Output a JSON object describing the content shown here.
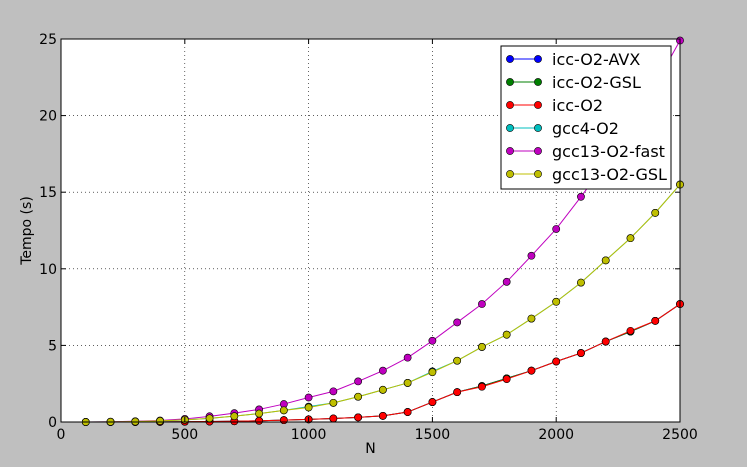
{
  "chart_data": {
    "type": "line",
    "xlabel": "N",
    "ylabel": "Tempo (s)",
    "xlim": [
      0,
      2500
    ],
    "ylim": [
      0,
      25
    ],
    "xticks": [
      0,
      500,
      1000,
      1500,
      2000,
      2500
    ],
    "yticks": [
      0,
      5,
      10,
      15,
      20,
      25
    ],
    "grid": true,
    "legend_position": "top-right",
    "x": [
      100,
      200,
      300,
      400,
      500,
      600,
      700,
      800,
      900,
      1000,
      1100,
      1200,
      1300,
      1400,
      1500,
      1600,
      1700,
      1800,
      1900,
      2000,
      2100,
      2200,
      2300,
      2400,
      2500
    ],
    "series": [
      {
        "name": "icc-O2-AVX",
        "color": "#0000ff",
        "values": [
          0.0,
          0.0,
          0.0,
          0.01,
          0.02,
          0.03,
          0.05,
          0.08,
          0.12,
          0.17,
          0.23,
          0.3,
          0.4,
          0.65,
          1.3,
          1.95,
          2.35,
          2.85,
          3.35,
          3.95,
          4.5,
          5.25,
          5.9,
          6.6,
          7.7
        ]
      },
      {
        "name": "icc-O2-GSL",
        "color": "#007f00",
        "values": [
          0.0,
          0.0,
          0.0,
          0.01,
          0.02,
          0.03,
          0.05,
          0.08,
          0.12,
          0.17,
          0.23,
          0.3,
          0.4,
          0.65,
          1.3,
          1.95,
          2.35,
          2.85,
          3.35,
          3.95,
          4.5,
          5.25,
          5.9,
          6.6,
          7.7
        ]
      },
      {
        "name": "icc-O2",
        "color": "#ff0000",
        "values": [
          0.0,
          0.0,
          0.0,
          0.01,
          0.02,
          0.03,
          0.05,
          0.08,
          0.12,
          0.17,
          0.23,
          0.3,
          0.4,
          0.65,
          1.3,
          1.95,
          2.3,
          2.8,
          3.35,
          3.95,
          4.5,
          5.25,
          5.95,
          6.6,
          7.7
        ]
      },
      {
        "name": "gcc4-O2",
        "color": "#00bfbf",
        "values": [
          0.0,
          0.01,
          0.03,
          0.07,
          0.14,
          0.24,
          0.38,
          0.55,
          0.76,
          1.0,
          1.25,
          1.65,
          2.1,
          2.55,
          3.3,
          4.0,
          4.9,
          5.7,
          6.75,
          7.85,
          9.1,
          10.55,
          12.0,
          13.65,
          15.5
        ]
      },
      {
        "name": "gcc13-O2-fast",
        "color": "#bf00bf",
        "values": [
          0.0,
          0.02,
          0.05,
          0.1,
          0.2,
          0.37,
          0.58,
          0.82,
          1.17,
          1.6,
          2.0,
          2.65,
          3.35,
          4.2,
          5.3,
          6.5,
          7.7,
          9.15,
          10.85,
          12.6,
          14.7,
          16.9,
          19.4,
          22.0,
          24.9
        ]
      },
      {
        "name": "gcc13-O2-GSL",
        "color": "#bfbf00",
        "values": [
          0.0,
          0.01,
          0.03,
          0.07,
          0.14,
          0.24,
          0.38,
          0.55,
          0.76,
          0.95,
          1.25,
          1.65,
          2.1,
          2.55,
          3.25,
          4.0,
          4.9,
          5.7,
          6.75,
          7.85,
          9.1,
          10.55,
          12.0,
          13.65,
          15.5
        ]
      }
    ]
  }
}
